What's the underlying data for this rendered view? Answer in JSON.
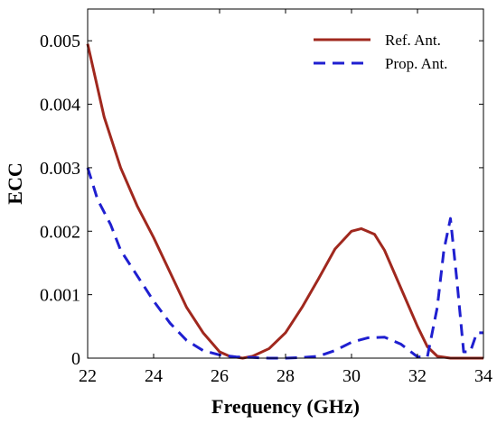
{
  "chart_data": {
    "type": "line",
    "title": "",
    "xlabel": "Frequency (GHz)",
    "ylabel": "ECC",
    "xlim": [
      22,
      34
    ],
    "ylim": [
      0,
      0.0055
    ],
    "x_ticks": [
      22,
      24,
      26,
      28,
      30,
      32,
      34
    ],
    "y_ticks": [
      0,
      0.001,
      0.002,
      0.003,
      0.004,
      0.005
    ],
    "x_tick_labels": [
      "22",
      "24",
      "26",
      "28",
      "30",
      "32",
      "34"
    ],
    "y_tick_labels": [
      "0",
      "0.001",
      "0.002",
      "0.003",
      "0.004",
      "0.005"
    ],
    "legend_position": "top-right",
    "grid": false,
    "series": [
      {
        "name": "Ref. Ant.",
        "color": "#a0281e",
        "style": "solid",
        "x": [
          22,
          22.5,
          23,
          23.5,
          24,
          24.5,
          25,
          25.5,
          26,
          26.3,
          26.7,
          27,
          27.5,
          28,
          28.5,
          29,
          29.5,
          30,
          30.3,
          30.7,
          31,
          31.5,
          32,
          32.3,
          32.6,
          33,
          33.5,
          34
        ],
        "y": [
          0.00495,
          0.0038,
          0.003,
          0.0024,
          0.0019,
          0.00135,
          0.0008,
          0.0004,
          0.0001,
          3e-05,
          0.0,
          3e-05,
          0.00015,
          0.0004,
          0.0008,
          0.00125,
          0.00172,
          0.002,
          0.00204,
          0.00195,
          0.0017,
          0.0011,
          0.0005,
          0.00018,
          3e-05,
          0.0,
          0.0,
          0.0
        ]
      },
      {
        "name": "Prop. Ant.",
        "color": "#1f1fd0",
        "style": "dashed",
        "x": [
          22,
          22.3,
          22.7,
          23,
          23.5,
          24,
          24.5,
          25,
          25.5,
          26,
          26.5,
          27,
          27.5,
          28,
          28.5,
          29,
          29.5,
          30,
          30.5,
          31,
          31.5,
          32,
          32.3,
          32.6,
          32.8,
          33,
          33.2,
          33.4,
          33.6,
          33.8,
          34
        ],
        "y": [
          0.003,
          0.0025,
          0.0021,
          0.0017,
          0.0013,
          0.0009,
          0.00055,
          0.00028,
          0.00012,
          5e-05,
          2e-05,
          1e-05,
          0.0,
          0.0,
          1e-05,
          3e-05,
          0.00012,
          0.00025,
          0.00032,
          0.00033,
          0.00022,
          2e-05,
          2e-05,
          0.0008,
          0.0017,
          0.0022,
          0.0012,
          0.0001,
          0.0001,
          0.0004,
          0.0004
        ]
      }
    ]
  }
}
